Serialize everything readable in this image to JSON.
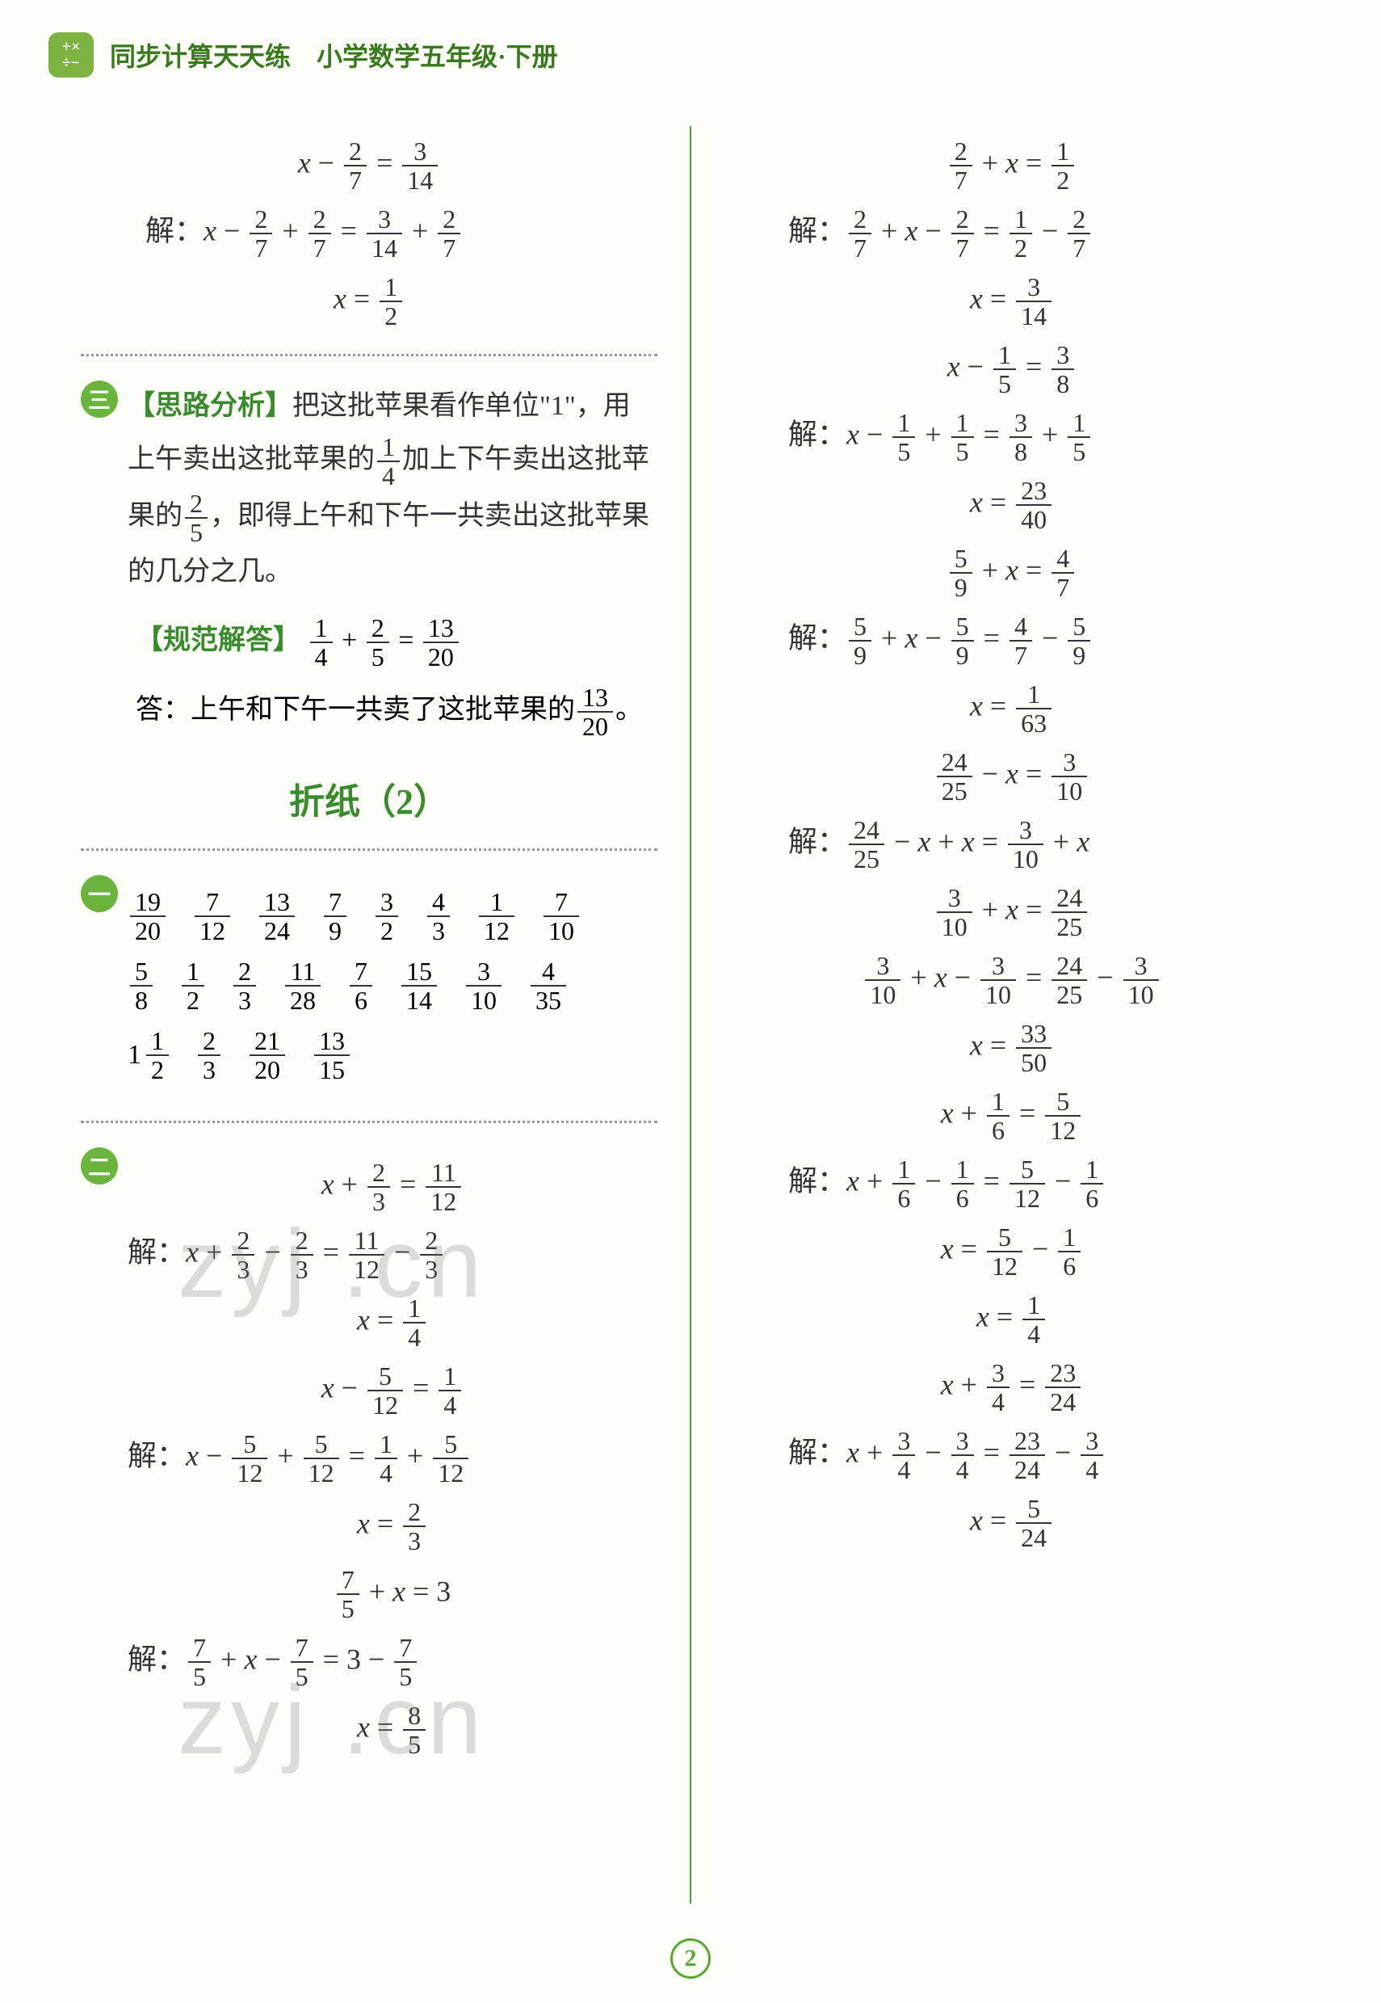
{
  "header": {
    "title": "同步计算天天练　小学数学五年级·下册"
  },
  "left": {
    "eq1": {
      "l1": {
        "a_n": "2",
        "a_d": "7",
        "b_n": "3",
        "b_d": "14"
      },
      "l2": {
        "pre": "解：",
        "a_n": "2",
        "a_d": "7",
        "b_n": "2",
        "b_d": "7",
        "c_n": "3",
        "c_d": "14",
        "d_n": "2",
        "d_d": "7"
      },
      "l3": {
        "n": "1",
        "d": "2"
      }
    },
    "analysis": {
      "badge": "三",
      "label": "【思路分析】",
      "t1": "把这批苹果看作单位\"1\"，用上午卖出这批苹果的",
      "f1_n": "1",
      "f1_d": "4",
      "t2": "加上下午卖出这批苹果的",
      "f2_n": "2",
      "f2_d": "5",
      "t3": "，即得上午和下午一共卖出这批苹果的几分之几。",
      "ans_label": "【规范解答】",
      "a_n": "1",
      "a_d": "4",
      "b_n": "2",
      "b_d": "5",
      "c_n": "13",
      "c_d": "20",
      "ans_text": "答：上午和下午一共卖了这批苹果的",
      "ans_f_n": "13",
      "ans_f_d": "20",
      "period": "。"
    },
    "section": "折纸（2）",
    "badge1": "一",
    "row1": [
      {
        "n": "19",
        "d": "20"
      },
      {
        "n": "7",
        "d": "12"
      },
      {
        "n": "13",
        "d": "24"
      },
      {
        "n": "7",
        "d": "9"
      },
      {
        "n": "3",
        "d": "2"
      },
      {
        "n": "4",
        "d": "3"
      },
      {
        "n": "1",
        "d": "12"
      },
      {
        "n": "7",
        "d": "10"
      }
    ],
    "row2": [
      {
        "n": "5",
        "d": "8"
      },
      {
        "n": "1",
        "d": "2"
      },
      {
        "n": "2",
        "d": "3"
      },
      {
        "n": "11",
        "d": "28"
      },
      {
        "n": "7",
        "d": "6"
      },
      {
        "n": "15",
        "d": "14"
      },
      {
        "n": "3",
        "d": "10"
      },
      {
        "n": "4",
        "d": "35"
      }
    ],
    "row3": {
      "mixed_whole": "1",
      "mixed_n": "1",
      "mixed_d": "2",
      "f2": {
        "n": "2",
        "d": "3"
      },
      "f3": {
        "n": "21",
        "d": "20"
      },
      "f4": {
        "n": "13",
        "d": "15"
      }
    },
    "badge2": "二",
    "eq2a": {
      "l1": {
        "a_n": "2",
        "a_d": "3",
        "b_n": "11",
        "b_d": "12"
      },
      "l2": {
        "pre": "解：",
        "a_n": "2",
        "a_d": "3",
        "b_n": "2",
        "b_d": "3",
        "c_n": "11",
        "c_d": "12",
        "d_n": "2",
        "d_d": "3"
      },
      "l3": {
        "n": "1",
        "d": "4"
      }
    },
    "eq2b": {
      "l1": {
        "a_n": "5",
        "a_d": "12",
        "b_n": "1",
        "b_d": "4"
      },
      "l2": {
        "pre": "解：",
        "a_n": "5",
        "a_d": "12",
        "b_n": "5",
        "b_d": "12",
        "c_n": "1",
        "c_d": "4",
        "d_n": "5",
        "d_d": "12"
      },
      "l3": {
        "n": "2",
        "d": "3"
      }
    },
    "eq2c": {
      "l1": {
        "a_n": "7",
        "a_d": "5",
        "rhs": "3"
      },
      "l2": {
        "pre": "解：",
        "a_n": "7",
        "a_d": "5",
        "b_n": "7",
        "b_d": "5",
        "rhs": "3",
        "d_n": "7",
        "d_d": "5"
      },
      "l3": {
        "n": "8",
        "d": "5"
      }
    }
  },
  "right": {
    "eqs": [
      {
        "type": "plus_x",
        "l1": {
          "a_n": "2",
          "a_d": "7",
          "b_n": "1",
          "b_d": "2"
        },
        "l2": {
          "pre": "解：",
          "a_n": "2",
          "a_d": "7",
          "b_n": "2",
          "b_d": "7",
          "c_n": "1",
          "c_d": "2",
          "d_n": "2",
          "d_d": "7"
        },
        "l3": {
          "n": "3",
          "d": "14"
        }
      },
      {
        "type": "x_minus",
        "l1": {
          "a_n": "1",
          "a_d": "5",
          "b_n": "3",
          "b_d": "8"
        },
        "l2": {
          "pre": "解：",
          "a_n": "1",
          "a_d": "5",
          "b_n": "1",
          "b_d": "5",
          "c_n": "3",
          "c_d": "8",
          "d_n": "1",
          "d_d": "5"
        },
        "l3": {
          "n": "23",
          "d": "40"
        }
      },
      {
        "type": "plus_x",
        "l1": {
          "a_n": "5",
          "a_d": "9",
          "b_n": "4",
          "b_d": "7"
        },
        "l2": {
          "pre": "解：",
          "a_n": "5",
          "a_d": "9",
          "b_n": "5",
          "b_d": "9",
          "c_n": "4",
          "c_d": "7",
          "d_n": "5",
          "d_d": "9"
        },
        "l3": {
          "n": "1",
          "d": "63"
        }
      },
      {
        "type": "a_minus_x",
        "l1": {
          "a_n": "24",
          "a_d": "25",
          "b_n": "3",
          "b_d": "10"
        },
        "steps": [
          {
            "pre": "解：",
            "lhs_a_n": "24",
            "lhs_a_d": "25",
            "txt": " − <span class='var'>x</span> + <span class='var'>x</span> = ",
            "rhs_a_n": "3",
            "rhs_a_d": "10",
            "txt2": " + <span class='var'>x</span>"
          },
          {
            "lhs_a_n": "3",
            "lhs_a_d": "10",
            "txt": " + <span class='var'>x</span> = ",
            "rhs_a_n": "24",
            "rhs_a_d": "25"
          },
          {
            "lhs_a_n": "3",
            "lhs_a_d": "10",
            "txt": " + <span class='var'>x</span> − ",
            "lhs_b_n": "3",
            "lhs_b_d": "10",
            "eq": " = ",
            "rhs_a_n": "24",
            "rhs_a_d": "25",
            "txt2": " − ",
            "rhs_b_n": "3",
            "rhs_b_d": "10"
          }
        ],
        "l3": {
          "n": "33",
          "d": "50"
        }
      },
      {
        "type": "x_plus",
        "l1": {
          "a_n": "1",
          "a_d": "6",
          "b_n": "5",
          "b_d": "12"
        },
        "l2": {
          "pre": "解：",
          "a_n": "1",
          "a_d": "6",
          "b_n": "1",
          "b_d": "6",
          "c_n": "5",
          "c_d": "12",
          "d_n": "1",
          "d_d": "6"
        },
        "extra": {
          "c_n": "5",
          "c_d": "12",
          "d_n": "1",
          "d_d": "6"
        },
        "l3": {
          "n": "1",
          "d": "4"
        }
      },
      {
        "type": "x_plus",
        "l1": {
          "a_n": "3",
          "a_d": "4",
          "b_n": "23",
          "b_d": "24"
        },
        "l2": {
          "pre": "解：",
          "a_n": "3",
          "a_d": "4",
          "b_n": "3",
          "b_d": "4",
          "c_n": "23",
          "c_d": "24",
          "d_n": "3",
          "d_d": "4"
        },
        "l3": {
          "n": "5",
          "d": "24"
        }
      }
    ]
  },
  "page": "2"
}
